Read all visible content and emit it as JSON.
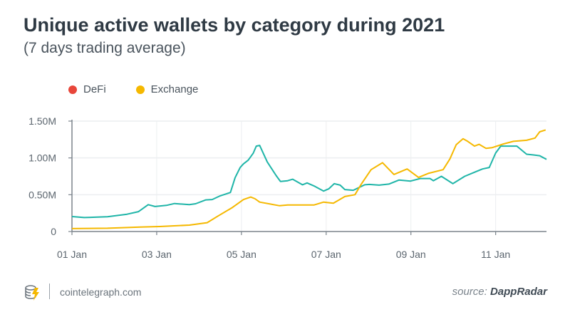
{
  "chart_data": {
    "type": "line",
    "title": "Unique active wallets by category during 2021",
    "subtitle": "(7 days trading average)",
    "xlabel": "",
    "ylabel": "",
    "x_unit": "months since 01 Jan",
    "xlim": [
      0,
      11.2
    ],
    "ylim": [
      0,
      1.5
    ],
    "x_ticks": [
      {
        "v": 0,
        "label": "01 Jan"
      },
      {
        "v": 2,
        "label": "03 Jan"
      },
      {
        "v": 4,
        "label": "05 Jan"
      },
      {
        "v": 6,
        "label": "07 Jan"
      },
      {
        "v": 8,
        "label": "09 Jan"
      },
      {
        "v": 10,
        "label": "11 Jan"
      }
    ],
    "y_ticks": [
      {
        "v": 0,
        "label": "0"
      },
      {
        "v": 0.5,
        "label": "0.50M"
      },
      {
        "v": 1.0,
        "label": "1.00M"
      },
      {
        "v": 1.5,
        "label": "1.50M"
      }
    ],
    "grid": true,
    "legend_placement": "top-left",
    "legend": [
      {
        "name": "DeFi",
        "color": "#e8463a"
      },
      {
        "name": "Exchange",
        "color": "#f5b800"
      }
    ],
    "series": [
      {
        "name": "DeFi (line)",
        "color": "#1fb5a8",
        "points": [
          [
            0,
            0.203
          ],
          [
            0.29,
            0.19
          ],
          [
            0.84,
            0.2
          ],
          [
            1.3,
            0.235
          ],
          [
            1.57,
            0.27
          ],
          [
            1.8,
            0.365
          ],
          [
            1.96,
            0.34
          ],
          [
            2.23,
            0.355
          ],
          [
            2.42,
            0.38
          ],
          [
            2.77,
            0.365
          ],
          [
            2.92,
            0.377
          ],
          [
            3.16,
            0.43
          ],
          [
            3.31,
            0.435
          ],
          [
            3.5,
            0.485
          ],
          [
            3.74,
            0.53
          ],
          [
            3.85,
            0.73
          ],
          [
            3.97,
            0.87
          ],
          [
            4.05,
            0.92
          ],
          [
            4.16,
            0.97
          ],
          [
            4.28,
            1.065
          ],
          [
            4.35,
            1.16
          ],
          [
            4.43,
            1.17
          ],
          [
            4.61,
            0.945
          ],
          [
            4.82,
            0.76
          ],
          [
            4.92,
            0.68
          ],
          [
            5.09,
            0.69
          ],
          [
            5.21,
            0.71
          ],
          [
            5.44,
            0.635
          ],
          [
            5.55,
            0.66
          ],
          [
            5.71,
            0.62
          ],
          [
            5.94,
            0.55
          ],
          [
            6.06,
            0.58
          ],
          [
            6.19,
            0.65
          ],
          [
            6.33,
            0.63
          ],
          [
            6.44,
            0.57
          ],
          [
            6.64,
            0.56
          ],
          [
            6.91,
            0.635
          ],
          [
            7.02,
            0.64
          ],
          [
            7.25,
            0.63
          ],
          [
            7.48,
            0.645
          ],
          [
            7.72,
            0.7
          ],
          [
            7.99,
            0.685
          ],
          [
            8.22,
            0.72
          ],
          [
            8.45,
            0.72
          ],
          [
            8.53,
            0.69
          ],
          [
            8.72,
            0.75
          ],
          [
            8.99,
            0.65
          ],
          [
            9.27,
            0.75
          ],
          [
            9.5,
            0.805
          ],
          [
            9.69,
            0.85
          ],
          [
            9.85,
            0.87
          ],
          [
            10.0,
            1.065
          ],
          [
            10.12,
            1.16
          ],
          [
            10.27,
            1.16
          ],
          [
            10.5,
            1.16
          ],
          [
            10.73,
            1.05
          ],
          [
            10.89,
            1.04
          ],
          [
            11.04,
            1.03
          ],
          [
            11.2,
            0.98
          ]
        ]
      },
      {
        "name": "Exchange",
        "color": "#f5b800",
        "points": [
          [
            0,
            0.04
          ],
          [
            0.84,
            0.045
          ],
          [
            1.61,
            0.06
          ],
          [
            2.07,
            0.068
          ],
          [
            2.77,
            0.087
          ],
          [
            3.19,
            0.12
          ],
          [
            3.46,
            0.215
          ],
          [
            3.77,
            0.32
          ],
          [
            4.05,
            0.435
          ],
          [
            4.22,
            0.468
          ],
          [
            4.32,
            0.445
          ],
          [
            4.43,
            0.4
          ],
          [
            4.9,
            0.35
          ],
          [
            5.09,
            0.36
          ],
          [
            5.71,
            0.36
          ],
          [
            5.94,
            0.4
          ],
          [
            6.17,
            0.385
          ],
          [
            6.44,
            0.475
          ],
          [
            6.68,
            0.5
          ],
          [
            6.83,
            0.645
          ],
          [
            7.06,
            0.84
          ],
          [
            7.33,
            0.935
          ],
          [
            7.6,
            0.775
          ],
          [
            7.91,
            0.85
          ],
          [
            8.18,
            0.735
          ],
          [
            8.41,
            0.79
          ],
          [
            8.76,
            0.84
          ],
          [
            8.92,
            0.985
          ],
          [
            9.07,
            1.18
          ],
          [
            9.23,
            1.26
          ],
          [
            9.34,
            1.225
          ],
          [
            9.5,
            1.16
          ],
          [
            9.61,
            1.185
          ],
          [
            9.77,
            1.13
          ],
          [
            9.92,
            1.14
          ],
          [
            10.19,
            1.19
          ],
          [
            10.42,
            1.225
          ],
          [
            10.73,
            1.24
          ],
          [
            10.93,
            1.27
          ],
          [
            11.04,
            1.355
          ],
          [
            11.18,
            1.38
          ]
        ]
      }
    ]
  },
  "footer": {
    "site": "cointelegraph.com",
    "source_prefix": "source: ",
    "source_name": "DappRadar"
  }
}
